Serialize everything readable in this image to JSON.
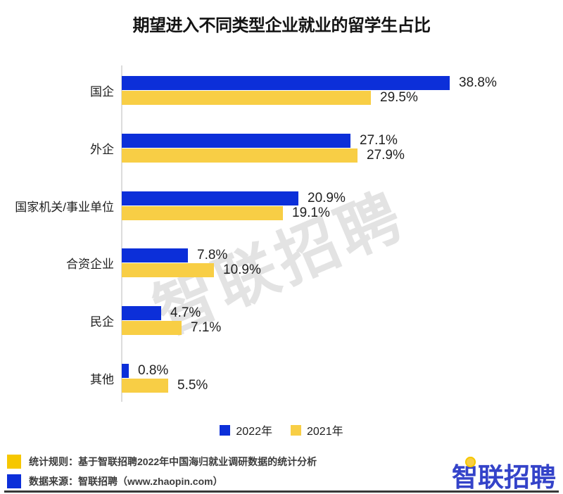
{
  "title": "期望进入不同类型企业就业的留学生占比",
  "watermark": "智联招聘",
  "chart_data": {
    "type": "bar",
    "orientation": "horizontal",
    "title": "期望进入不同类型企业就业的留学生占比",
    "categories": [
      "国企",
      "外企",
      "国家机关/事业单位",
      "合资企业",
      "民企",
      "其他"
    ],
    "series": [
      {
        "name": "2022年",
        "color": "#0c2fd9",
        "values": [
          38.8,
          27.1,
          20.9,
          7.8,
          4.7,
          0.8
        ]
      },
      {
        "name": "2021年",
        "color": "#f8ce45",
        "values": [
          29.5,
          27.9,
          19.1,
          10.9,
          7.1,
          5.5
        ]
      }
    ],
    "value_suffix": "%",
    "xlim": [
      0,
      40
    ],
    "grid": false,
    "legend_position": "bottom",
    "value_labels": [
      "38.8%",
      "29.5%",
      "27.1%",
      "27.9%",
      "20.9%",
      "19.1%",
      "7.8%",
      "10.9%",
      "4.7%",
      "7.1%",
      "0.8%",
      "5.5%"
    ]
  },
  "footer": {
    "notes": [
      {
        "marker_color": "#f6c700",
        "text": "统计规则：基于智联招聘2022年中国海归就业调研数据的统计分析"
      },
      {
        "marker_color": "#0c2fd9",
        "text": "数据来源：智联招聘（www.zhaopin.com）"
      }
    ],
    "logo_text": "智联招聘",
    "logo_color": "#3443c9",
    "logo_accent_color": "#f8ce45"
  },
  "colors": {
    "bar_2022": "#0c2fd9",
    "bar_2021": "#f8ce45",
    "axis": "#dcdcdc",
    "watermark": "#e3e3e3",
    "text": "#1f1f1f",
    "bottom_border": "#383838"
  }
}
